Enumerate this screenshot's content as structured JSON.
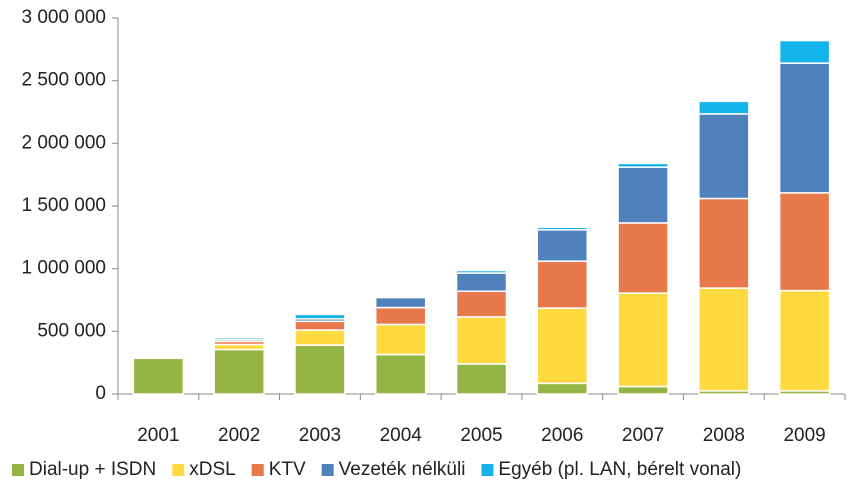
{
  "chart_data": {
    "type": "stacked_bar",
    "categories": [
      "2001",
      "2002",
      "2003",
      "2004",
      "2005",
      "2006",
      "2007",
      "2008",
      "2009"
    ],
    "series": [
      {
        "name": "Dial-up + ISDN",
        "color": "#94b545",
        "values": [
          285000,
          355000,
          390000,
          315000,
          240000,
          85000,
          60000,
          25000,
          25000
        ]
      },
      {
        "name": "xDSL",
        "color": "#ffd940",
        "values": [
          10000,
          40000,
          120000,
          240000,
          375000,
          600000,
          745000,
          820000,
          800000
        ]
      },
      {
        "name": "KTV",
        "color": "#e8794a",
        "values": [
          10000,
          25000,
          70000,
          135000,
          205000,
          375000,
          560000,
          715000,
          780000
        ]
      },
      {
        "name": "Vezeték nélküli",
        "color": "#4f81bd",
        "values": [
          5000,
          15000,
          20000,
          80000,
          145000,
          250000,
          445000,
          675000,
          1035000
        ]
      },
      {
        "name": "Egyéb (pl. LAN, bérelt vonal)",
        "color": "#12b4ea",
        "values": [
          10000,
          15000,
          35000,
          10000,
          20000,
          20000,
          30000,
          100000,
          180000
        ]
      }
    ],
    "ylim": [
      0,
      3000000
    ],
    "yticks": [
      0,
      {
        "value": 500000,
        "label": "500 000"
      },
      {
        "value": 1000000,
        "label": "1 000 000"
      },
      {
        "value": 1500000,
        "label": "1 500 000"
      },
      {
        "value": 2000000,
        "label": "2 000 000"
      },
      {
        "value": 2500000,
        "label": "2 500 000"
      },
      {
        "value": 3000000,
        "label": "3 000 000"
      }
    ],
    "legend": "bottom"
  }
}
